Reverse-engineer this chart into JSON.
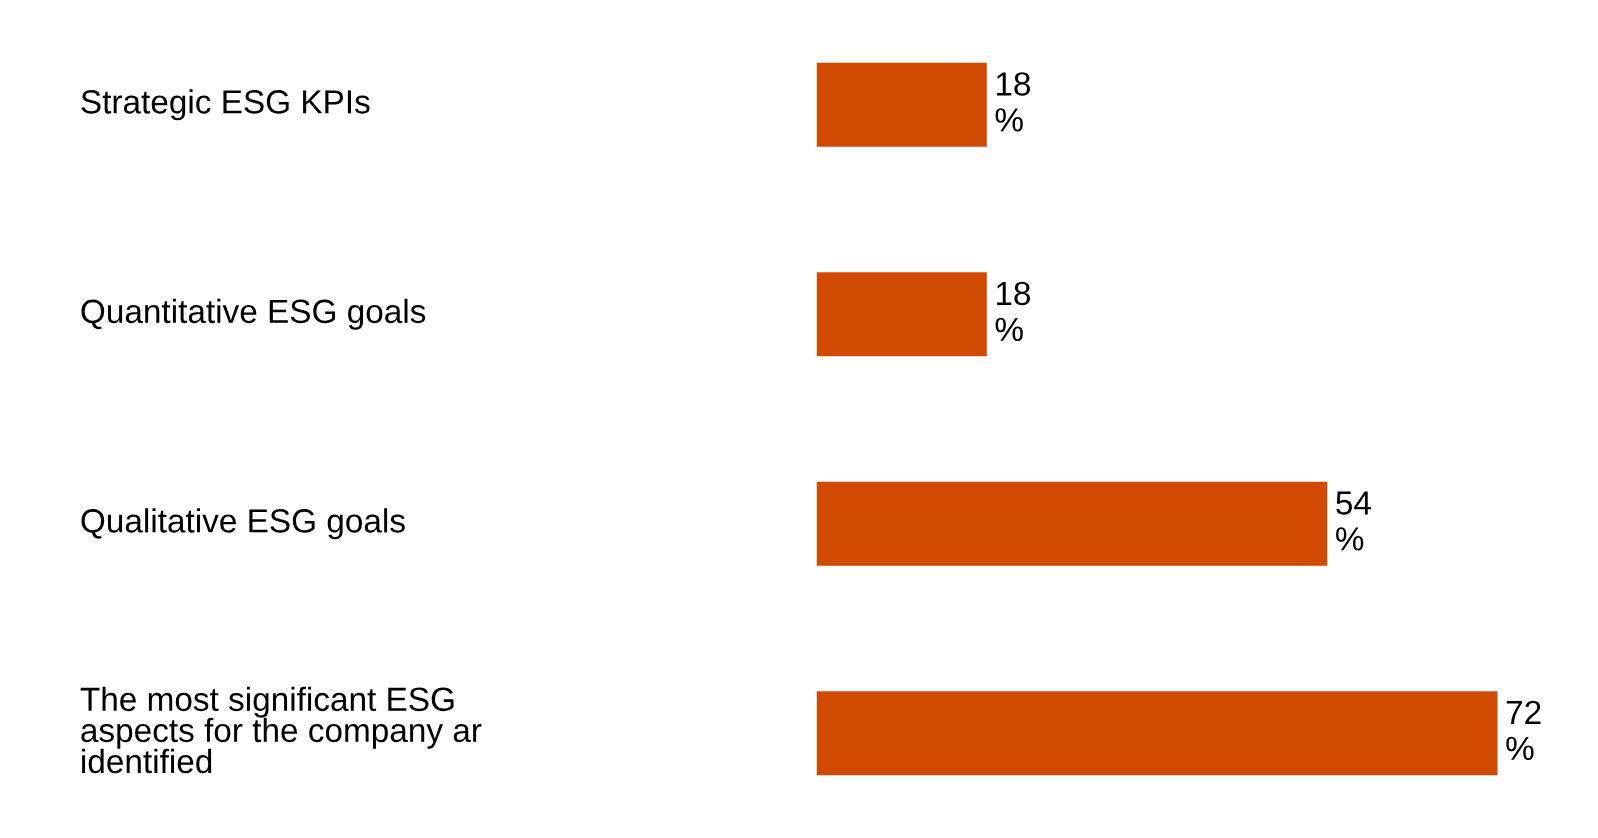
{
  "chart_data": {
    "type": "bar",
    "orientation": "horizontal",
    "categories": [
      "Strategic ESG KPIs",
      "Quantitative ESG goals",
      "Qualitative ESG goals",
      "The most significant ESG\naspects for the company ar\nidentified"
    ],
    "values": [
      18,
      18,
      54,
      72
    ],
    "value_labels": [
      "18\n%",
      "18\n%",
      "54\n%",
      "72\n%"
    ],
    "color": "#d04a02"
  }
}
